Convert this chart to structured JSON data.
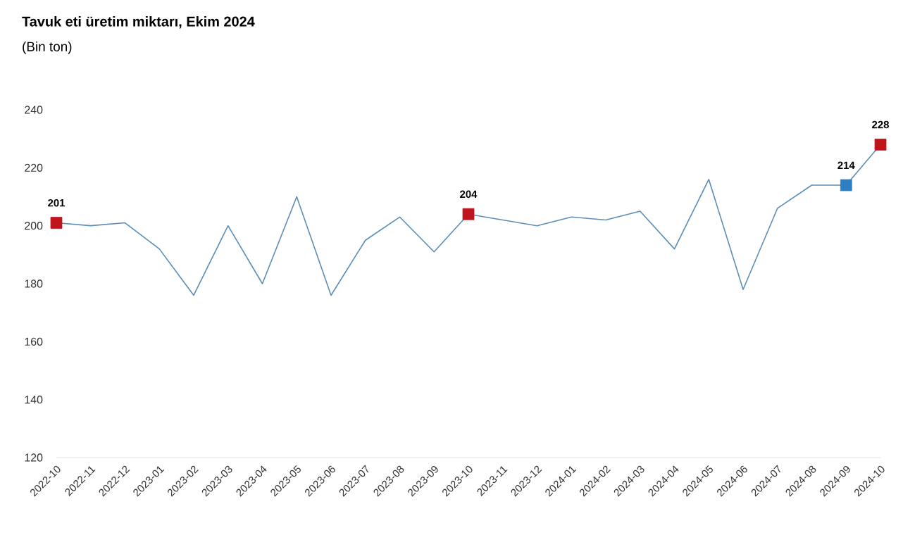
{
  "chart_data": {
    "type": "line",
    "title": "Tavuk eti üretim miktarı, Ekim 2024",
    "subtitle": "(Bin ton)",
    "categories": [
      "2022-10",
      "2022-11",
      "2022-12",
      "2023-01",
      "2023-02",
      "2023-03",
      "2023-04",
      "2023-05",
      "2023-06",
      "2023-07",
      "2023-08",
      "2023-09",
      "2023-10",
      "2023-11",
      "2023-12",
      "2024-01",
      "2024-02",
      "2024-03",
      "2024-04",
      "2024-05",
      "2024-06",
      "2024-07",
      "2024-08",
      "2024-09",
      "2024-10"
    ],
    "series": [
      {
        "color": "#5b8db8",
        "marker": "none",
        "values": [
          201,
          200,
          201,
          192,
          176,
          200,
          180,
          210,
          176,
          195,
          203,
          191,
          204,
          202,
          200,
          203,
          202,
          205,
          192,
          216,
          178,
          206,
          214,
          214,
          228
        ]
      },
      {
        "type": "scatter",
        "marker": "square",
        "values": [
          201,
          null,
          null,
          null,
          null,
          null,
          null,
          null,
          null,
          null,
          null,
          null,
          204,
          null,
          null,
          null,
          null,
          null,
          null,
          null,
          null,
          null,
          null,
          214,
          228
        ],
        "colors": [
          "#c0141c",
          null,
          null,
          null,
          null,
          null,
          null,
          null,
          null,
          null,
          null,
          null,
          "#c0141c",
          null,
          null,
          null,
          null,
          null,
          null,
          null,
          null,
          null,
          null,
          "#2e7fc1",
          "#c0141c"
        ],
        "value_labels": [
          "201",
          null,
          null,
          null,
          null,
          null,
          null,
          null,
          null,
          null,
          null,
          null,
          "204",
          null,
          null,
          null,
          null,
          null,
          null,
          null,
          null,
          null,
          null,
          "214",
          "228"
        ]
      }
    ],
    "ylim": [
      120,
      240
    ],
    "yticks": [
      120,
      140,
      160,
      180,
      200,
      220,
      240
    ],
    "grid": false
  }
}
